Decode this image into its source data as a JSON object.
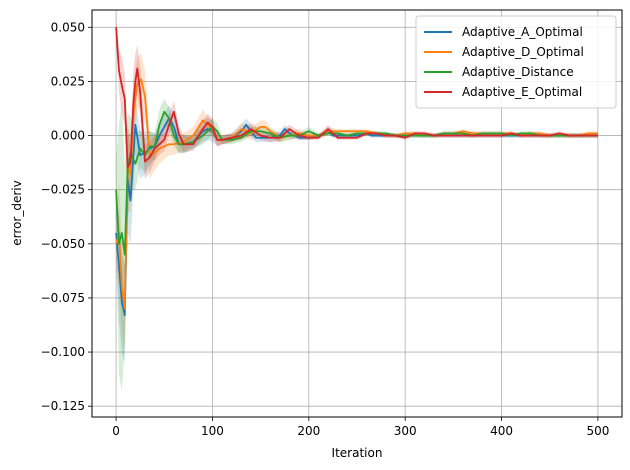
{
  "chart_data": {
    "type": "line",
    "title": "",
    "xlabel": "Iteration",
    "ylabel": "error_deriv",
    "xlim": [
      -25,
      525
    ],
    "ylim": [
      -0.13,
      0.058
    ],
    "xticks": [
      0,
      100,
      200,
      300,
      400,
      500
    ],
    "xtick_labels": [
      "0",
      "100",
      "200",
      "300",
      "400",
      "500"
    ],
    "yticks": [
      -0.125,
      -0.1,
      -0.075,
      -0.05,
      -0.025,
      0.0,
      0.025,
      0.05
    ],
    "ytick_labels": [
      "−0.125",
      "−0.100",
      "−0.075",
      "−0.050",
      "−0.025",
      "0.000",
      "0.025",
      "0.050"
    ],
    "grid": true,
    "legend_position": "top-right",
    "series": [
      {
        "name": "Adaptive_A_Optimal",
        "color": "#1f77b4",
        "x": [
          0,
          3,
          6,
          9,
          12,
          15,
          20,
          25,
          30,
          35,
          40,
          45,
          50,
          55,
          60,
          65,
          70,
          80,
          90,
          95,
          100,
          105,
          110,
          120,
          130,
          135,
          140,
          145,
          150,
          155,
          160,
          170,
          175,
          180,
          190,
          200,
          210,
          215,
          220,
          225,
          230,
          240,
          250,
          260,
          265,
          270,
          280,
          290,
          300,
          310,
          320,
          330,
          340,
          350,
          360,
          370,
          380,
          390,
          400,
          410,
          420,
          430,
          440,
          450,
          460,
          470,
          480,
          490,
          500
        ],
        "y": [
          -0.045,
          -0.06,
          -0.077,
          -0.083,
          -0.02,
          -0.03,
          0.005,
          -0.009,
          -0.008,
          -0.006,
          -0.005,
          0.0,
          0.004,
          0.008,
          0.004,
          -0.004,
          -0.004,
          -0.003,
          0.002,
          0.003,
          0.002,
          -0.002,
          -0.002,
          -0.001,
          0.002,
          0.005,
          0.002,
          -0.001,
          -0.001,
          -0.001,
          -0.001,
          0.0,
          0.003,
          0.001,
          -0.001,
          -0.001,
          0.0,
          0.001,
          0.002,
          0.0,
          0.0,
          0.0,
          0.0,
          0.001,
          0.0,
          0.0,
          0.0,
          0.0,
          0.0,
          0.0,
          0.0,
          0.0,
          0.0,
          0.0,
          0.0,
          0.0,
          0.0,
          0.0,
          0.0,
          0.0,
          0.0,
          0.0,
          0.0,
          0.0,
          0.0,
          0.0,
          0.0,
          0.0,
          0.0
        ],
        "lower": [
          -0.06,
          -0.085,
          -0.1,
          -0.105,
          -0.045,
          -0.05,
          -0.008,
          -0.02,
          -0.018,
          -0.014,
          -0.011,
          -0.006,
          -0.002,
          0.002,
          -0.002,
          -0.008,
          -0.008,
          -0.006,
          -0.003,
          -0.002,
          -0.003,
          -0.005,
          -0.004,
          -0.003,
          -0.001,
          0.002,
          -0.001,
          -0.003,
          -0.003,
          -0.003,
          -0.003,
          -0.002,
          0.001,
          -0.001,
          -0.002,
          -0.002,
          -0.001,
          0.0,
          0.001,
          -0.001,
          -0.001,
          -0.001,
          -0.001,
          0.0,
          -0.001,
          -0.001,
          -0.001,
          -0.001,
          -0.001,
          -0.001,
          -0.001,
          -0.001,
          -0.001,
          -0.001,
          -0.001,
          -0.001,
          -0.001,
          -0.001,
          -0.001,
          -0.001,
          -0.001,
          -0.001,
          -0.001,
          -0.001,
          -0.001,
          -0.001,
          -0.001,
          -0.001,
          -0.001
        ],
        "upper": [
          -0.03,
          -0.035,
          -0.054,
          -0.06,
          0.005,
          -0.01,
          0.018,
          0.002,
          0.002,
          0.002,
          0.001,
          0.006,
          0.01,
          0.014,
          0.01,
          0.0,
          0.0,
          0.0,
          0.007,
          0.008,
          0.007,
          0.001,
          0.0,
          0.001,
          0.005,
          0.008,
          0.005,
          0.001,
          0.001,
          0.001,
          0.001,
          0.002,
          0.005,
          0.003,
          0.0,
          0.0,
          0.001,
          0.002,
          0.003,
          0.001,
          0.001,
          0.001,
          0.001,
          0.002,
          0.001,
          0.001,
          0.001,
          0.001,
          0.001,
          0.001,
          0.001,
          0.001,
          0.001,
          0.001,
          0.001,
          0.001,
          0.001,
          0.001,
          0.001,
          0.001,
          0.001,
          0.001,
          0.001,
          0.001,
          0.001,
          0.001,
          0.001,
          0.001,
          0.001
        ]
      },
      {
        "name": "Adaptive_D_Optimal",
        "color": "#ff7f0e",
        "x": [
          0,
          3,
          6,
          9,
          12,
          15,
          18,
          22,
          26,
          30,
          35,
          40,
          45,
          50,
          55,
          60,
          70,
          80,
          90,
          95,
          100,
          105,
          110,
          120,
          130,
          140,
          150,
          155,
          160,
          170,
          180,
          190,
          200,
          210,
          220,
          230,
          240,
          250,
          260,
          270,
          280,
          290,
          300,
          310,
          320,
          330,
          340,
          350,
          360,
          370,
          380,
          390,
          400,
          410,
          420,
          430,
          440,
          450,
          460,
          470,
          480,
          490,
          500
        ],
        "y": [
          -0.05,
          -0.045,
          -0.07,
          -0.08,
          -0.015,
          -0.018,
          0.01,
          0.024,
          0.026,
          0.018,
          -0.01,
          -0.008,
          -0.006,
          -0.005,
          -0.004,
          -0.004,
          -0.003,
          0.0,
          0.007,
          0.005,
          0.003,
          -0.002,
          -0.002,
          -0.001,
          0.003,
          0.001,
          0.004,
          0.004,
          0.002,
          -0.001,
          0.0,
          0.001,
          0.0,
          0.0,
          0.002,
          0.002,
          0.002,
          0.002,
          0.002,
          0.001,
          0.0,
          0.0,
          0.001,
          0.001,
          0.0,
          0.0,
          0.001,
          0.001,
          0.002,
          0.001,
          0.001,
          0.001,
          0.001,
          0.001,
          0.0,
          0.001,
          0.001,
          0.0,
          0.0,
          0.0,
          0.0,
          0.001,
          0.001
        ],
        "lower": [
          -0.06,
          -0.07,
          -0.09,
          -0.1,
          -0.035,
          -0.035,
          -0.004,
          0.012,
          0.014,
          0.006,
          -0.02,
          -0.016,
          -0.013,
          -0.011,
          -0.009,
          -0.009,
          -0.007,
          -0.004,
          0.002,
          0.001,
          -0.001,
          -0.005,
          -0.004,
          -0.003,
          0.0,
          -0.002,
          0.001,
          0.001,
          0.0,
          -0.003,
          -0.002,
          -0.001,
          -0.002,
          -0.001,
          0.0,
          0.001,
          0.001,
          0.001,
          0.001,
          0.0,
          -0.001,
          -0.001,
          0.0,
          0.0,
          -0.001,
          -0.001,
          0.0,
          0.0,
          0.001,
          0.0,
          0.0,
          0.0,
          0.0,
          0.0,
          -0.001,
          0.0,
          0.0,
          -0.001,
          -0.001,
          -0.001,
          -0.001,
          0.0,
          0.0
        ],
        "upper": [
          -0.04,
          -0.02,
          -0.05,
          -0.06,
          0.005,
          0.0,
          0.024,
          0.036,
          0.038,
          0.03,
          0.0,
          0.0,
          0.001,
          0.001,
          0.001,
          0.001,
          0.001,
          0.004,
          0.012,
          0.009,
          0.007,
          0.001,
          0.0,
          0.001,
          0.006,
          0.004,
          0.007,
          0.007,
          0.004,
          0.001,
          0.002,
          0.003,
          0.002,
          0.001,
          0.004,
          0.003,
          0.003,
          0.003,
          0.003,
          0.002,
          0.001,
          0.001,
          0.002,
          0.002,
          0.001,
          0.001,
          0.002,
          0.002,
          0.003,
          0.002,
          0.002,
          0.002,
          0.002,
          0.002,
          0.001,
          0.002,
          0.002,
          0.001,
          0.001,
          0.001,
          0.001,
          0.002,
          0.002
        ]
      },
      {
        "name": "Adaptive_Distance",
        "color": "#2ca02c",
        "x": [
          0,
          3,
          6,
          9,
          12,
          15,
          20,
          25,
          30,
          35,
          40,
          45,
          50,
          55,
          60,
          65,
          70,
          80,
          90,
          95,
          100,
          105,
          110,
          120,
          130,
          140,
          150,
          160,
          170,
          180,
          190,
          200,
          210,
          220,
          230,
          240,
          250,
          260,
          270,
          280,
          290,
          300,
          310,
          320,
          330,
          340,
          350,
          360,
          370,
          380,
          390,
          400,
          410,
          420,
          430,
          440,
          450,
          460,
          470,
          480,
          490,
          500
        ],
        "y": [
          -0.025,
          -0.05,
          -0.045,
          -0.055,
          -0.015,
          -0.008,
          -0.013,
          -0.006,
          -0.009,
          -0.005,
          -0.005,
          0.005,
          0.011,
          0.008,
          0.0,
          -0.004,
          -0.004,
          -0.003,
          0.0,
          0.002,
          0.004,
          0.002,
          -0.002,
          -0.002,
          -0.001,
          0.002,
          0.002,
          0.001,
          -0.001,
          0.0,
          0.0,
          0.002,
          0.0,
          0.001,
          0.001,
          0.0,
          0.001,
          0.001,
          0.001,
          0.001,
          0.0,
          0.0,
          0.0,
          0.0,
          0.0,
          0.001,
          0.001,
          0.001,
          0.0,
          0.001,
          0.001,
          0.001,
          0.0,
          0.001,
          0.001,
          0.0,
          0.0,
          0.0,
          0.0,
          0.0,
          0.0,
          0.0
        ],
        "lower": [
          -0.04,
          -0.11,
          -0.118,
          -0.095,
          -0.04,
          -0.025,
          -0.025,
          -0.015,
          -0.017,
          -0.012,
          -0.011,
          -0.002,
          0.005,
          0.003,
          -0.005,
          -0.008,
          -0.008,
          -0.006,
          -0.004,
          -0.002,
          0.0,
          -0.002,
          -0.004,
          -0.004,
          -0.003,
          0.0,
          0.0,
          -0.001,
          -0.003,
          -0.002,
          -0.001,
          0.0,
          -0.001,
          0.0,
          0.0,
          -0.001,
          0.0,
          0.0,
          0.0,
          0.0,
          -0.001,
          -0.001,
          -0.001,
          -0.001,
          -0.001,
          0.0,
          0.0,
          0.0,
          -0.001,
          0.0,
          0.0,
          0.0,
          -0.001,
          0.0,
          0.0,
          -0.001,
          -0.001,
          -0.001,
          -0.001,
          -0.001,
          -0.001,
          -0.001
        ],
        "upper": [
          -0.01,
          0.005,
          0.016,
          -0.015,
          0.01,
          0.009,
          -0.001,
          0.003,
          -0.001,
          0.002,
          0.001,
          0.012,
          0.017,
          0.013,
          0.005,
          0.0,
          0.0,
          0.0,
          0.004,
          0.006,
          0.008,
          0.006,
          0.0,
          0.0,
          0.001,
          0.004,
          0.004,
          0.003,
          0.001,
          0.002,
          0.001,
          0.004,
          0.001,
          0.002,
          0.002,
          0.001,
          0.002,
          0.002,
          0.002,
          0.002,
          0.001,
          0.001,
          0.001,
          0.001,
          0.001,
          0.002,
          0.002,
          0.002,
          0.001,
          0.002,
          0.002,
          0.002,
          0.001,
          0.002,
          0.002,
          0.001,
          0.001,
          0.001,
          0.001,
          0.001,
          0.001,
          0.001
        ]
      },
      {
        "name": "Adaptive_E_Optimal",
        "color": "#d62728",
        "x": [
          0,
          3,
          6,
          9,
          12,
          15,
          18,
          20,
          22,
          25,
          30,
          35,
          40,
          45,
          50,
          55,
          60,
          65,
          70,
          80,
          90,
          95,
          100,
          105,
          110,
          120,
          130,
          140,
          150,
          160,
          170,
          180,
          190,
          200,
          210,
          220,
          230,
          240,
          250,
          260,
          270,
          280,
          290,
          300,
          310,
          320,
          330,
          340,
          350,
          360,
          370,
          380,
          390,
          400,
          410,
          420,
          430,
          440,
          450,
          460,
          470,
          480,
          490,
          500
        ],
        "y": [
          0.05,
          0.03,
          0.023,
          0.017,
          -0.015,
          -0.012,
          0.015,
          0.025,
          0.031,
          0.02,
          -0.012,
          -0.01,
          -0.006,
          -0.004,
          -0.002,
          0.005,
          0.011,
          0.001,
          -0.004,
          -0.004,
          0.003,
          0.006,
          0.004,
          -0.002,
          -0.002,
          -0.001,
          0.0,
          0.003,
          0.0,
          -0.001,
          -0.001,
          0.003,
          0.0,
          -0.001,
          -0.001,
          0.003,
          -0.001,
          -0.001,
          -0.001,
          0.001,
          0.001,
          0.0,
          0.0,
          -0.001,
          0.001,
          0.001,
          0.0,
          0.0,
          0.0,
          0.0,
          0.0,
          0.0,
          0.0,
          0.0,
          0.001,
          0.0,
          0.0,
          0.0,
          0.0,
          0.001,
          0.0,
          0.0,
          0.0,
          0.0
        ],
        "lower": [
          0.045,
          0.02,
          0.01,
          0.005,
          -0.03,
          -0.025,
          0.0,
          0.012,
          0.02,
          0.008,
          -0.02,
          -0.017,
          -0.012,
          -0.009,
          -0.007,
          0.0,
          0.006,
          -0.003,
          -0.008,
          -0.007,
          -0.001,
          0.002,
          0.0,
          -0.005,
          -0.004,
          -0.003,
          -0.002,
          0.0,
          -0.002,
          -0.003,
          -0.003,
          0.001,
          -0.002,
          -0.002,
          -0.002,
          0.001,
          -0.002,
          -0.002,
          -0.002,
          0.0,
          0.0,
          -0.001,
          -0.001,
          -0.002,
          0.0,
          0.0,
          -0.001,
          -0.001,
          -0.001,
          -0.001,
          -0.001,
          -0.001,
          -0.001,
          -0.001,
          0.0,
          -0.001,
          -0.001,
          -0.001,
          -0.001,
          0.0,
          -0.001,
          -0.001,
          -0.001,
          -0.001
        ],
        "upper": [
          0.055,
          0.04,
          0.036,
          0.029,
          0.0,
          0.001,
          0.03,
          0.038,
          0.042,
          0.032,
          -0.004,
          -0.003,
          0.0,
          0.001,
          0.003,
          0.01,
          0.016,
          0.005,
          0.0,
          -0.001,
          0.007,
          0.01,
          0.008,
          0.001,
          0.0,
          0.001,
          0.002,
          0.006,
          0.002,
          0.001,
          0.001,
          0.005,
          0.002,
          0.0,
          0.0,
          0.005,
          0.0,
          0.0,
          0.0,
          0.002,
          0.002,
          0.001,
          0.001,
          0.0,
          0.002,
          0.002,
          0.001,
          0.001,
          0.001,
          0.001,
          0.001,
          0.001,
          0.001,
          0.001,
          0.002,
          0.001,
          0.001,
          0.001,
          0.001,
          0.002,
          0.001,
          0.001,
          0.001,
          0.001
        ]
      }
    ]
  }
}
